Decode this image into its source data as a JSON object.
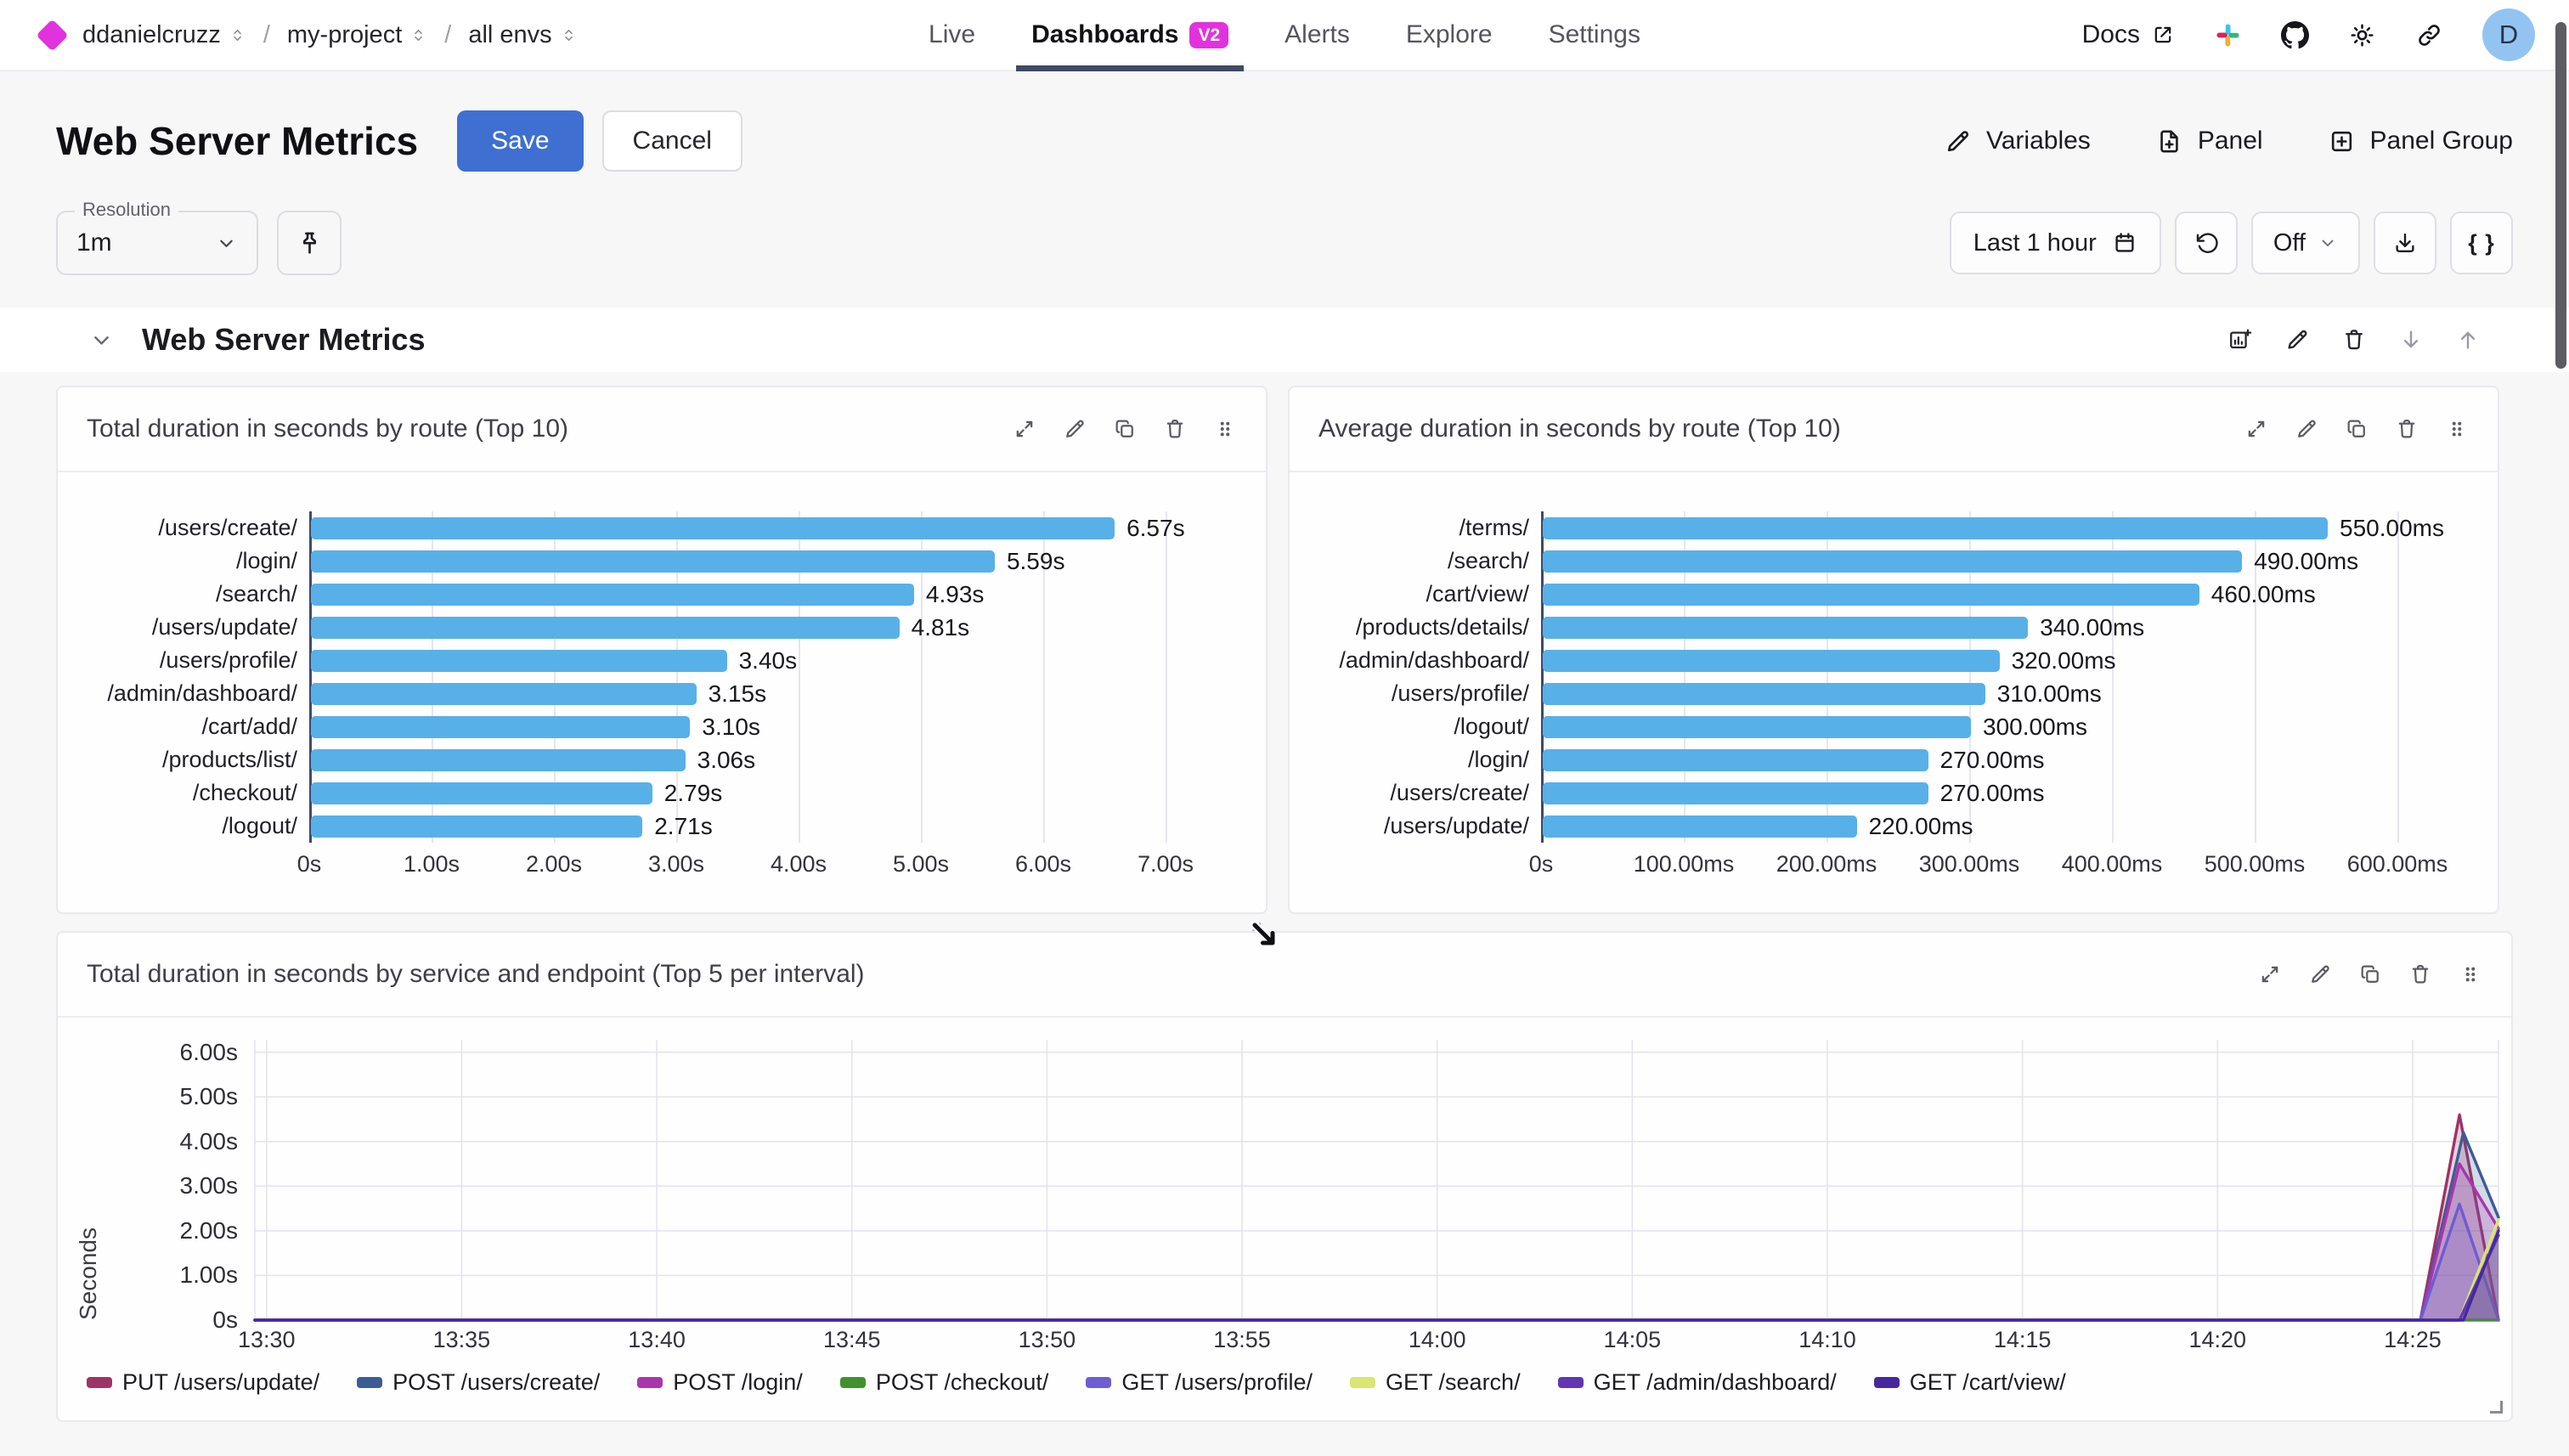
{
  "nav": {
    "logo_color": "#e232dd",
    "breadcrumb": [
      {
        "label": "ddanielcruzz"
      },
      {
        "label": "my-project"
      },
      {
        "label": "all envs"
      }
    ],
    "separator": "/",
    "tabs": [
      {
        "label": "Live",
        "active": false
      },
      {
        "label": "Dashboards",
        "active": true,
        "badge": "V2"
      },
      {
        "label": "Alerts",
        "active": false
      },
      {
        "label": "Explore",
        "active": false
      },
      {
        "label": "Settings",
        "active": false
      }
    ],
    "docs_label": "Docs",
    "avatar_initial": "D"
  },
  "header": {
    "title": "Web Server Metrics",
    "save_label": "Save",
    "cancel_label": "Cancel",
    "actions": [
      {
        "label": "Variables",
        "icon": "pencil"
      },
      {
        "label": "Panel",
        "icon": "file-plus"
      },
      {
        "label": "Panel Group",
        "icon": "square-plus"
      }
    ]
  },
  "toolbar": {
    "resolution_label": "Resolution",
    "resolution_value": "1m",
    "time_range_label": "Last 1 hour",
    "auto_refresh_value": "Off",
    "braces_label": "{ }"
  },
  "section": {
    "title": "Web Server Metrics"
  },
  "colors": {
    "accent_blue": "#3e6fd1",
    "badge_magenta": "#e232dd",
    "bar_blue": "#58b0e8",
    "axis_dark": "#3e4a6e"
  },
  "chart_data": [
    {
      "type": "bar",
      "orientation": "horizontal",
      "title": "Total duration in seconds by route (Top 10)",
      "categories": [
        "/users/create/",
        "/login/",
        "/search/",
        "/users/update/",
        "/users/profile/",
        "/admin/dashboard/",
        "/cart/add/",
        "/products/list/",
        "/checkout/",
        "/logout/"
      ],
      "values": [
        6.57,
        5.59,
        4.93,
        4.81,
        3.4,
        3.15,
        3.1,
        3.06,
        2.79,
        2.71
      ],
      "value_labels": [
        "6.57s",
        "5.59s",
        "4.93s",
        "4.81s",
        "3.40s",
        "3.15s",
        "3.10s",
        "3.06s",
        "2.79s",
        "2.71s"
      ],
      "x_ticks": [
        {
          "value": 0,
          "label": "0s"
        },
        {
          "value": 1,
          "label": "1.00s"
        },
        {
          "value": 2,
          "label": "2.00s"
        },
        {
          "value": 3,
          "label": "3.00s"
        },
        {
          "value": 4,
          "label": "4.00s"
        },
        {
          "value": 5,
          "label": "5.00s"
        },
        {
          "value": 6,
          "label": "6.00s"
        },
        {
          "value": 7,
          "label": "7.00s"
        }
      ],
      "xlim": [
        0,
        7
      ],
      "bar_color": "#58b0e8",
      "unit": "seconds"
    },
    {
      "type": "bar",
      "orientation": "horizontal",
      "title": "Average duration in seconds by route (Top 10)",
      "categories": [
        "/terms/",
        "/search/",
        "/cart/view/",
        "/products/details/",
        "/admin/dashboard/",
        "/users/profile/",
        "/logout/",
        "/login/",
        "/users/create/",
        "/users/update/"
      ],
      "values": [
        550,
        490,
        460,
        340,
        320,
        310,
        300,
        270,
        270,
        220
      ],
      "value_labels": [
        "550.00ms",
        "490.00ms",
        "460.00ms",
        "340.00ms",
        "320.00ms",
        "310.00ms",
        "300.00ms",
        "270.00ms",
        "270.00ms",
        "220.00ms"
      ],
      "x_ticks": [
        {
          "value": 0,
          "label": "0s"
        },
        {
          "value": 100,
          "label": "100.00ms"
        },
        {
          "value": 200,
          "label": "200.00ms"
        },
        {
          "value": 300,
          "label": "300.00ms"
        },
        {
          "value": 400,
          "label": "400.00ms"
        },
        {
          "value": 500,
          "label": "500.00ms"
        },
        {
          "value": 600,
          "label": "600.00ms"
        }
      ],
      "xlim": [
        0,
        600
      ],
      "bar_color": "#58b0e8",
      "unit": "milliseconds"
    },
    {
      "type": "area",
      "title": "Total duration in seconds by service and endpoint (Top 5 per interval)",
      "ylabel": "Seconds",
      "y_ticks": [
        {
          "value": 0,
          "label": "0s"
        },
        {
          "value": 1,
          "label": "1.00s"
        },
        {
          "value": 2,
          "label": "2.00s"
        },
        {
          "value": 3,
          "label": "3.00s"
        },
        {
          "value": 4,
          "label": "4.00s"
        },
        {
          "value": 5,
          "label": "5.00s"
        },
        {
          "value": 6,
          "label": "6.00s"
        }
      ],
      "ylim": [
        0,
        6.28
      ],
      "x_ticks": [
        {
          "minute": 0,
          "label": "13:30"
        },
        {
          "minute": 5,
          "label": "13:35"
        },
        {
          "minute": 10,
          "label": "13:40"
        },
        {
          "minute": 15,
          "label": "13:45"
        },
        {
          "minute": 20,
          "label": "13:50"
        },
        {
          "minute": 25,
          "label": "13:55"
        },
        {
          "minute": 30,
          "label": "14:00"
        },
        {
          "minute": 35,
          "label": "14:05"
        },
        {
          "minute": 40,
          "label": "14:10"
        },
        {
          "minute": 45,
          "label": "14:15"
        },
        {
          "minute": 50,
          "label": "14:20"
        },
        {
          "minute": 55,
          "label": "14:25"
        }
      ],
      "x_domain_minutes": [
        -0.3,
        57.2
      ],
      "grid": true,
      "legend_position": "bottom",
      "series": [
        {
          "name": "PUT /users/update/",
          "color": "#9e3366",
          "points": [
            [
              -0.3,
              0
            ],
            [
              55.2,
              0
            ],
            [
              56.2,
              4.6
            ],
            [
              57.2,
              0
            ]
          ]
        },
        {
          "name": "POST /users/create/",
          "color": "#3c5c96",
          "points": [
            [
              -0.3,
              0
            ],
            [
              55.2,
              0
            ],
            [
              56.3,
              4.2
            ],
            [
              57.2,
              2.3
            ]
          ]
        },
        {
          "name": "POST /login/",
          "color": "#aa35ac",
          "points": [
            [
              -0.3,
              0
            ],
            [
              55.2,
              0
            ],
            [
              56.2,
              3.5
            ],
            [
              57.2,
              2.05
            ]
          ]
        },
        {
          "name": "POST /checkout/",
          "color": "#43912e",
          "points": [
            [
              -0.3,
              0
            ],
            [
              57.2,
              0
            ]
          ]
        },
        {
          "name": "GET /users/profile/",
          "color": "#6e5cd3",
          "points": [
            [
              -0.3,
              0
            ],
            [
              55.2,
              0
            ],
            [
              56.2,
              2.6
            ],
            [
              57.2,
              0
            ]
          ]
        },
        {
          "name": "GET /search/",
          "color": "#d9e671",
          "points": [
            [
              -0.3,
              0
            ],
            [
              56.2,
              0
            ],
            [
              57.2,
              2.25
            ]
          ]
        },
        {
          "name": "GET /admin/dashboard/",
          "color": "#6236b5",
          "points": [
            [
              -0.3,
              0
            ],
            [
              56.2,
              0
            ],
            [
              57.2,
              1.9
            ]
          ]
        },
        {
          "name": "GET /cart/view/",
          "color": "#45289d",
          "points": [
            [
              -0.3,
              0
            ],
            [
              56.3,
              0
            ],
            [
              57.2,
              2.0
            ]
          ]
        }
      ]
    }
  ]
}
